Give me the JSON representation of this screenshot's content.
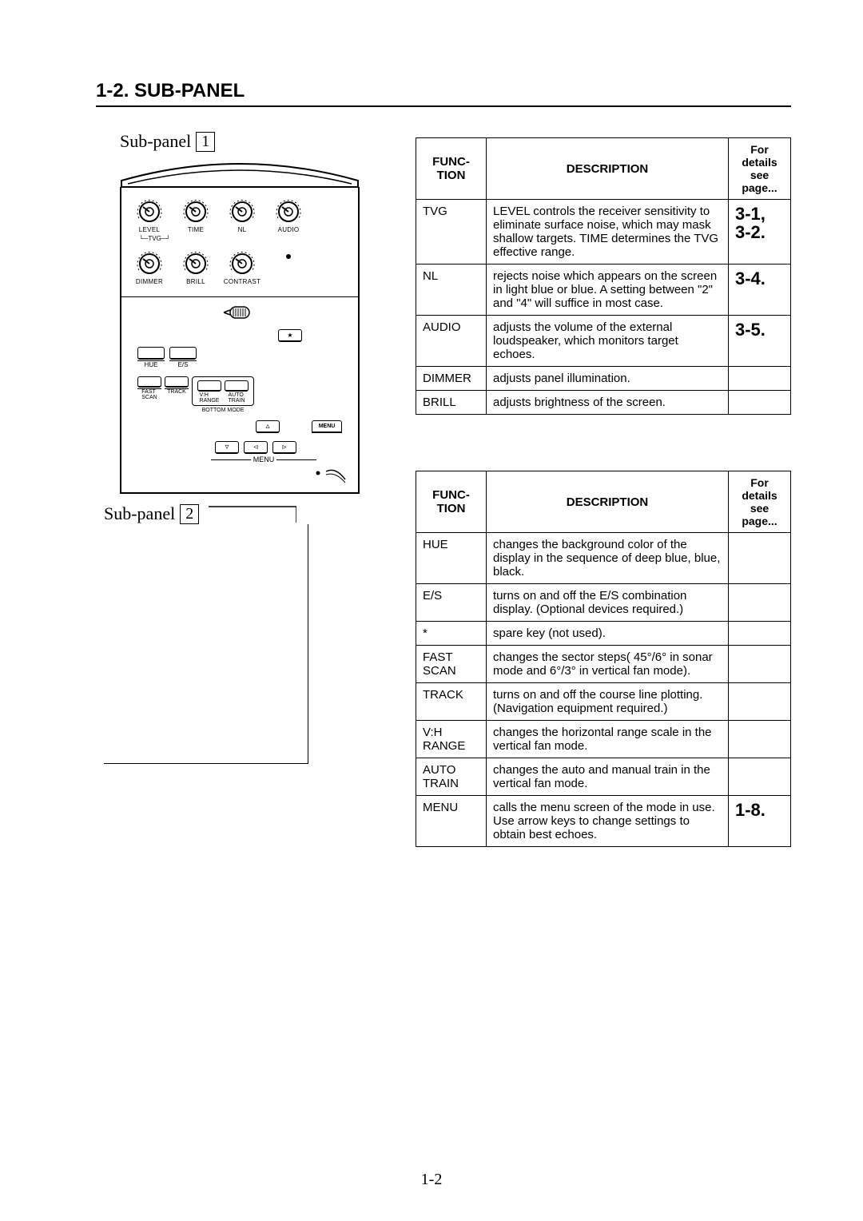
{
  "section_title": "1-2. SUB-PANEL",
  "subpanel1_label": "Sub-panel",
  "subpanel1_num": "1",
  "subpanel2_label": "Sub-panel",
  "subpanel2_num": "2",
  "knobs_row1": [
    "LEVEL",
    "TIME",
    "NL",
    "AUDIO"
  ],
  "tvg_label": "TVG",
  "knobs_row2": [
    "DIMMER",
    "BRILL",
    "CONTRAST"
  ],
  "hue_label": "HUE",
  "es_label": "E/S",
  "fast_scan": "FAST\nSCAN",
  "track": "TRACK",
  "vh_range": "V:H\nRANGE",
  "auto_train": "AUTO\nTRAIN",
  "bottom_mode": "BOTTOM MODE",
  "menu_label": "MENU",
  "menu_btn": "MENU",
  "table1": {
    "headers": [
      "FUNC-\nTION",
      "DESCRIPTION",
      "For\ndetails\nsee\npage..."
    ],
    "rows": [
      {
        "func": "TVG",
        "desc": "LEVEL controls the receiver sensitivity to eliminate surface noise, which may mask shallow targets. TIME determines the TVG effective range.",
        "page": "3-1,\n3-2."
      },
      {
        "func": "NL",
        "desc": "rejects noise which appears on the screen in light blue or blue. A setting between \"2\" and \"4\" will suffice in most case.",
        "page": "3-4."
      },
      {
        "func": "AUDIO",
        "desc": "adjusts the volume of the external loudspeaker, which monitors target echoes.",
        "page": "3-5."
      },
      {
        "func": "DIMMER",
        "desc": "adjusts panel illumination.",
        "page": ""
      },
      {
        "func": "BRILL",
        "desc": "adjusts brightness of the screen.",
        "page": ""
      }
    ]
  },
  "table2": {
    "headers": [
      "FUNC-\nTION",
      "DESCRIPTION",
      "For\ndetails\nsee\npage..."
    ],
    "rows": [
      {
        "func": "HUE",
        "desc": "changes the background color of the display in the sequence of deep blue, blue, black.",
        "page": ""
      },
      {
        "func": "E/S",
        "desc": "turns on and off the E/S combination display. (Optional devices required.)",
        "page": ""
      },
      {
        "func": "*",
        "desc": "spare key (not used).",
        "page": ""
      },
      {
        "func": "FAST\nSCAN",
        "desc": "changes the sector steps( 45°/6° in sonar mode and 6°/3° in vertical fan mode).",
        "page": ""
      },
      {
        "func": "TRACK",
        "desc": "turns on and off the course line plotting. (Navigation equipment required.)",
        "page": ""
      },
      {
        "func": "V:H\nRANGE",
        "desc": "changes the horizontal range scale in the vertical fan mode.",
        "page": ""
      },
      {
        "func": "AUTO\nTRAIN",
        "desc": "changes  the auto and manual train in the vertical fan mode.",
        "page": ""
      },
      {
        "func": "MENU",
        "desc": "calls the menu screen of the mode in use. Use arrow keys to change settings to obtain best echoes.",
        "page": "1-8."
      }
    ]
  },
  "page_number": "1-2",
  "colors": {
    "text": "#000000",
    "bg": "#ffffff",
    "border": "#000000"
  },
  "dial_scale": {
    "min": "0",
    "max": "10"
  }
}
